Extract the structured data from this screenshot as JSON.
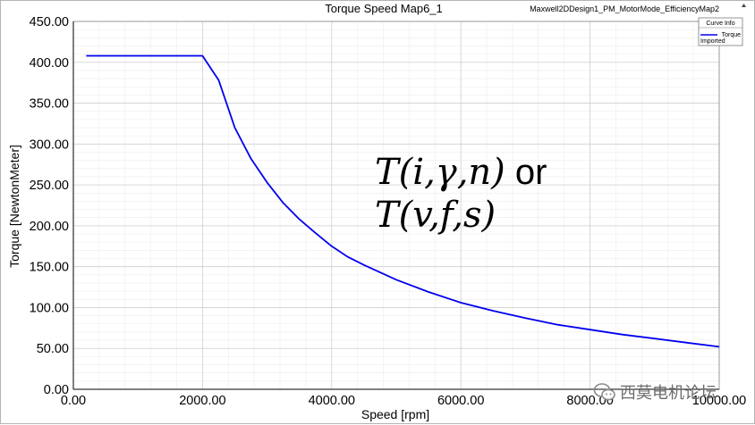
{
  "chart_data": {
    "type": "line",
    "title": "Torque Speed Map6_1",
    "design_name": "Maxwell2DDesign1_PM_MotorMode_EfficiencyMap2",
    "xlabel": "Speed [rpm]",
    "ylabel": "Torque [NewtonMeter]",
    "xlim": [
      0,
      10000
    ],
    "ylim": [
      0,
      450
    ],
    "x_ticks": [
      "0.00",
      "2000.00",
      "4000.00",
      "6000.00",
      "8000.00",
      "10000.00"
    ],
    "y_ticks": [
      "0.00",
      "50.00",
      "100.00",
      "150.00",
      "200.00",
      "250.00",
      "300.00",
      "350.00",
      "400.00",
      "450.00"
    ],
    "grid": true,
    "legend": {
      "title": "Curve Info",
      "placement": "top-right",
      "entries": [
        {
          "name": "Torque",
          "sub": "Imported",
          "color": "#0000ee"
        }
      ]
    },
    "series": [
      {
        "name": "Torque",
        "color": "#0000ee",
        "x": [
          200,
          2000,
          2250,
          2500,
          2750,
          3000,
          3250,
          3500,
          3750,
          4000,
          4250,
          4500,
          5000,
          5500,
          6000,
          6500,
          7000,
          7500,
          8000,
          8500,
          9000,
          9500,
          10000
        ],
        "y": [
          408,
          408,
          378,
          320,
          282,
          253,
          228,
          208,
          191,
          175,
          162,
          152,
          134,
          119,
          106,
          96,
          87,
          79,
          73,
          67,
          62,
          57,
          52
        ]
      }
    ]
  },
  "annotation": {
    "line1": "T(i,γ,n)",
    "line1_suffix": " or",
    "line2": "T(v,f,s)"
  },
  "watermark": {
    "text": "西莫电机论坛",
    "icon": "wechat-icon"
  },
  "colors": {
    "series": "#0000ee",
    "grid_major": "#d0d0d0",
    "grid_minor": "#ececec"
  }
}
